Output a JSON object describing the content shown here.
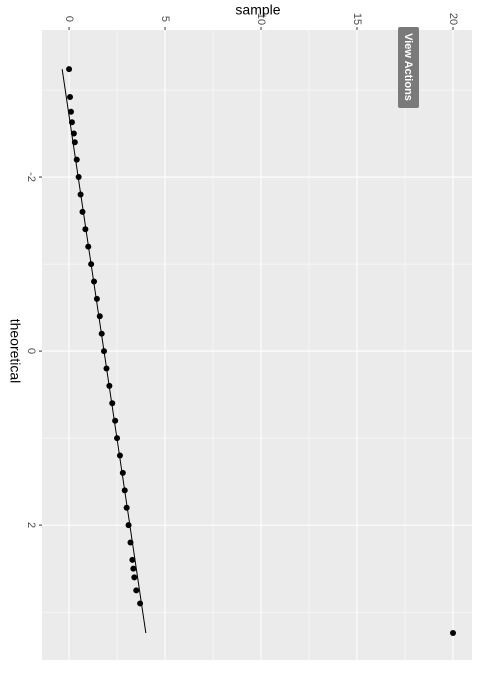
{
  "chart_data": {
    "type": "scatter",
    "x_label": "theoretical",
    "y_label": "sample",
    "x": [
      -3.24,
      -2.92,
      -2.75,
      -2.63,
      -2.5,
      -2.4,
      -2.2,
      -2.0,
      -1.8,
      -1.6,
      -1.4,
      -1.2,
      -1.0,
      -0.8,
      -0.6,
      -0.4,
      -0.2,
      0,
      0.2,
      0.4,
      0.6,
      0.8,
      1.0,
      1.2,
      1.4,
      1.6,
      1.8,
      2.0,
      2.2,
      2.4,
      2.5,
      2.6,
      2.75,
      2.9,
      3.24
    ],
    "values": [
      0.0,
      0.05,
      0.1,
      0.15,
      0.25,
      0.3,
      0.4,
      0.5,
      0.6,
      0.7,
      0.85,
      1.0,
      1.15,
      1.3,
      1.45,
      1.6,
      1.7,
      1.82,
      1.95,
      2.1,
      2.25,
      2.4,
      2.5,
      2.65,
      2.8,
      2.9,
      3.0,
      3.1,
      3.2,
      3.3,
      3.35,
      3.4,
      3.5,
      3.7,
      20
    ],
    "color": "#000000",
    "reference_line": {
      "x": [
        -3.24,
        3.24
      ],
      "values": [
        -0.36,
        4.0
      ]
    },
    "xlim": [
      -3.69,
      3.55
    ],
    "xticks": [
      -2,
      0,
      2
    ],
    "minor_xticks": [
      -3,
      -1,
      1,
      3
    ],
    "ylim": [
      -1.41,
      20.99
    ],
    "yticks": [
      0,
      5,
      10,
      15,
      20
    ],
    "minor_yticks": [
      2.5,
      7.5,
      12.5,
      17.5
    ],
    "grid": true
  },
  "button": {
    "label": "View Actions"
  }
}
